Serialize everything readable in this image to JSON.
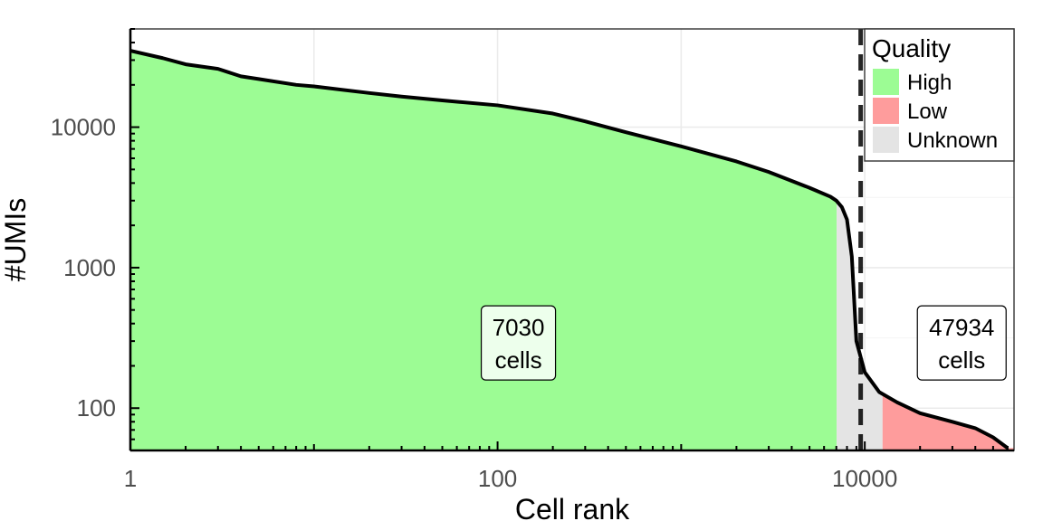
{
  "chart_data": {
    "type": "area",
    "xlabel": "Cell rank",
    "ylabel": "#UMIs",
    "x_scale": "log10",
    "y_scale": "log10",
    "xlim": [
      1,
      65000
    ],
    "ylim": [
      50,
      50000
    ],
    "x_ticks": [
      1,
      100,
      10000
    ],
    "x_tick_labels": [
      "1",
      "100",
      "10000"
    ],
    "y_ticks": [
      100,
      1000,
      10000
    ],
    "y_tick_labels": [
      "100",
      "1000",
      "10000"
    ],
    "grid": true,
    "threshold_line": {
      "x": 9500,
      "style": "dashed",
      "color": "#000000"
    },
    "legend": {
      "title": "Quality",
      "placement": "top-right",
      "entries": [
        {
          "label": "High",
          "color": "#9cfc94"
        },
        {
          "label": "Low",
          "color": "#fe9c9c"
        },
        {
          "label": "Unknown",
          "color": "#e4e4e4"
        }
      ]
    },
    "regions": [
      {
        "quality": "High",
        "x_start": 1,
        "x_end": 7030
      },
      {
        "quality": "Unknown",
        "x_start": 7030,
        "x_end": 12500
      },
      {
        "quality": "Low",
        "x_start": 12500,
        "x_end": 65000
      }
    ],
    "annotations": [
      {
        "line1": "7030",
        "line2": "cells",
        "x": 100,
        "y": 300
      },
      {
        "line1": "47934",
        "line2": "cells",
        "x": 40000,
        "y": 300
      }
    ],
    "series": [
      {
        "x": [
          1,
          1.5,
          2,
          3,
          4,
          5,
          8,
          10,
          20,
          30,
          50,
          100,
          200,
          300,
          500,
          1000,
          2000,
          3000,
          5000,
          6500,
          7000,
          7500,
          8000,
          8500,
          9000,
          10000,
          12000,
          15000,
          20000,
          30000,
          40000,
          50000,
          60000
        ],
        "y": [
          35000,
          31000,
          28000,
          26000,
          23000,
          22000,
          20000,
          19500,
          17500,
          16500,
          15500,
          14300,
          12500,
          11000,
          9200,
          7300,
          5700,
          4800,
          3700,
          3200,
          3000,
          2700,
          2200,
          1200,
          300,
          180,
          130,
          110,
          92,
          80,
          72,
          62,
          52
        ]
      }
    ]
  }
}
